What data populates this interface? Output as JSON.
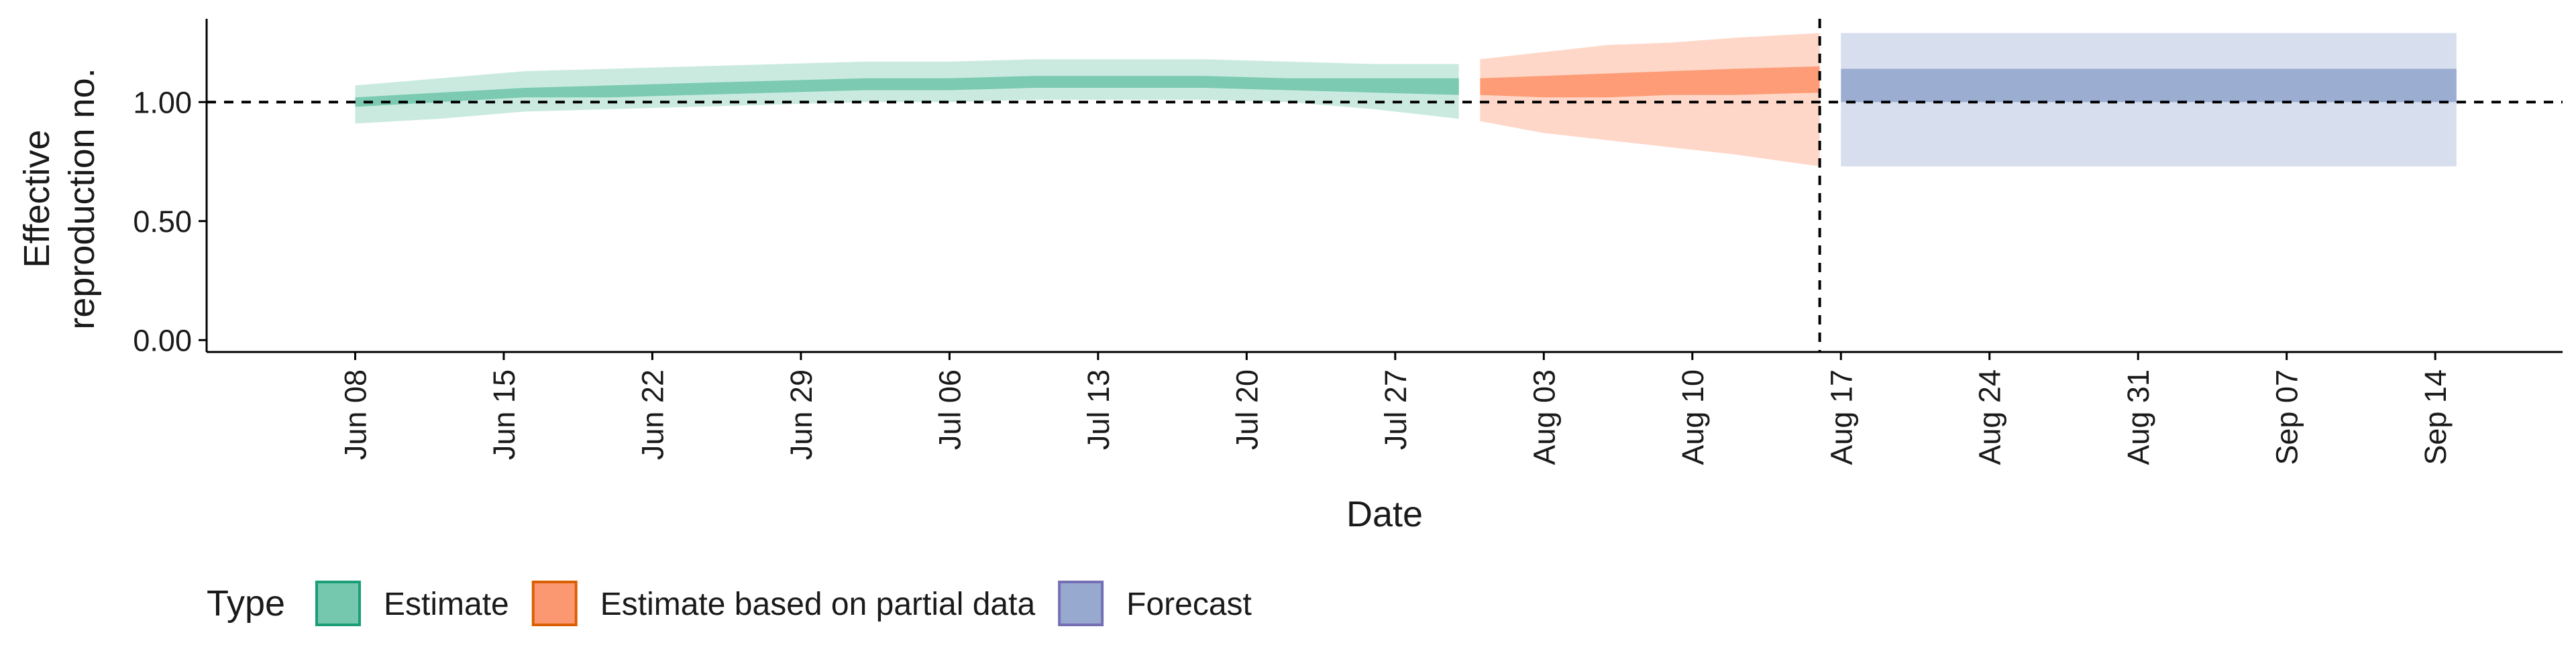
{
  "chart_data": {
    "type": "area",
    "title": "",
    "xlabel": "Date",
    "ylabel_lines": [
      "Effective",
      "reproduction no."
    ],
    "y_ticks": [
      0,
      0.5,
      1,
      1.5
    ],
    "y_tick_labels": [
      "0.00",
      "0.50",
      "1.00"
    ],
    "ylim": [
      -0.05,
      1.35
    ],
    "x_ticks": [
      "Jun 08",
      "Jun 15",
      "Jun 22",
      "Jun 29",
      "Jul 06",
      "Jul 13",
      "Jul 20",
      "Jul 27",
      "Aug 03",
      "Aug 10",
      "Aug 17",
      "Aug 24",
      "Aug 31",
      "Sep 07",
      "Sep 14"
    ],
    "xlim": [
      "2020-06-01",
      "2020-09-20"
    ],
    "reference_hline": 1.0,
    "reference_vline": "2020-08-16",
    "legend_position": "bottom",
    "legend_title": "Type",
    "series": [
      {
        "name": "Estimate",
        "fill": "#66c2a5",
        "border": "#1b9e77",
        "points": [
          {
            "date": "2020-06-08",
            "lower90": 0.91,
            "upper90": 1.07,
            "lower50": 0.98,
            "upper50": 1.02
          },
          {
            "date": "2020-06-12",
            "lower90": 0.93,
            "upper90": 1.1,
            "lower50": 1.0,
            "upper50": 1.04
          },
          {
            "date": "2020-06-16",
            "lower90": 0.96,
            "upper90": 1.13,
            "lower50": 1.02,
            "upper50": 1.06
          },
          {
            "date": "2020-06-20",
            "lower90": 0.97,
            "upper90": 1.14,
            "lower50": 1.02,
            "upper50": 1.07
          },
          {
            "date": "2020-06-24",
            "lower90": 0.98,
            "upper90": 1.15,
            "lower50": 1.03,
            "upper50": 1.08
          },
          {
            "date": "2020-06-28",
            "lower90": 0.99,
            "upper90": 1.16,
            "lower50": 1.04,
            "upper50": 1.09
          },
          {
            "date": "2020-07-02",
            "lower90": 1.0,
            "upper90": 1.17,
            "lower50": 1.05,
            "upper50": 1.1
          },
          {
            "date": "2020-07-06",
            "lower90": 1.0,
            "upper90": 1.17,
            "lower50": 1.05,
            "upper50": 1.1
          },
          {
            "date": "2020-07-10",
            "lower90": 1.01,
            "upper90": 1.18,
            "lower50": 1.06,
            "upper50": 1.11
          },
          {
            "date": "2020-07-14",
            "lower90": 1.01,
            "upper90": 1.18,
            "lower50": 1.06,
            "upper50": 1.11
          },
          {
            "date": "2020-07-18",
            "lower90": 1.01,
            "upper90": 1.18,
            "lower50": 1.06,
            "upper50": 1.11
          },
          {
            "date": "2020-07-22",
            "lower90": 1.0,
            "upper90": 1.17,
            "lower50": 1.05,
            "upper50": 1.1
          },
          {
            "date": "2020-07-26",
            "lower90": 0.97,
            "upper90": 1.16,
            "lower50": 1.04,
            "upper50": 1.1
          },
          {
            "date": "2020-07-30",
            "lower90": 0.93,
            "upper90": 1.16,
            "lower50": 1.03,
            "upper50": 1.1
          }
        ]
      },
      {
        "name": "Estimate based on partial data",
        "fill": "#fc8d62",
        "border": "#d95f02",
        "points": [
          {
            "date": "2020-07-31",
            "lower90": 0.92,
            "upper90": 1.18,
            "lower50": 1.03,
            "upper50": 1.1
          },
          {
            "date": "2020-08-03",
            "lower90": 0.87,
            "upper90": 1.21,
            "lower50": 1.02,
            "upper50": 1.11
          },
          {
            "date": "2020-08-06",
            "lower90": 0.84,
            "upper90": 1.24,
            "lower50": 1.02,
            "upper50": 1.12
          },
          {
            "date": "2020-08-09",
            "lower90": 0.81,
            "upper90": 1.25,
            "lower50": 1.03,
            "upper50": 1.13
          },
          {
            "date": "2020-08-12",
            "lower90": 0.78,
            "upper90": 1.27,
            "lower50": 1.03,
            "upper50": 1.14
          },
          {
            "date": "2020-08-16",
            "lower90": 0.73,
            "upper90": 1.29,
            "lower50": 1.04,
            "upper50": 1.15
          }
        ]
      },
      {
        "name": "Forecast",
        "fill": "#8da0cb",
        "border": "#7570b3",
        "points": [
          {
            "date": "2020-08-17",
            "lower90": 0.73,
            "upper90": 1.29,
            "lower50": 1.0,
            "upper50": 1.14
          },
          {
            "date": "2020-09-15",
            "lower90": 0.73,
            "upper90": 1.29,
            "lower50": 1.0,
            "upper50": 1.14
          }
        ]
      }
    ]
  }
}
